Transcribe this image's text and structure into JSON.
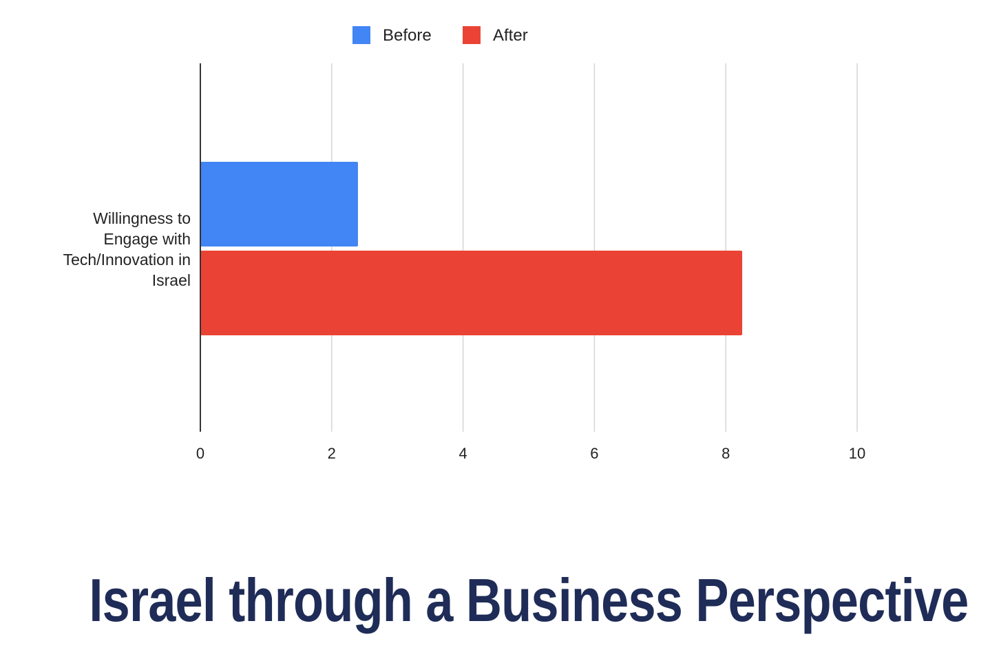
{
  "title": "Israel through a Business Perspective",
  "chart_data": {
    "type": "bar",
    "orientation": "horizontal",
    "categories": [
      "Willingness to Engage with Tech/Innovation in Israel"
    ],
    "category_label_lines": [
      "Willingness to",
      "Engage with",
      "Tech/Innovation in",
      "Israel"
    ],
    "series": [
      {
        "name": "Before",
        "values": [
          2.4
        ],
        "color": "#4285f4"
      },
      {
        "name": "After",
        "values": [
          8.25
        ],
        "color": "#ea4335"
      }
    ],
    "xlim": [
      0,
      10
    ],
    "xticks": [
      "0",
      "2",
      "4",
      "6",
      "8",
      "10"
    ],
    "grid": true,
    "legend": "top-center",
    "xlabel": "",
    "ylabel": ""
  }
}
